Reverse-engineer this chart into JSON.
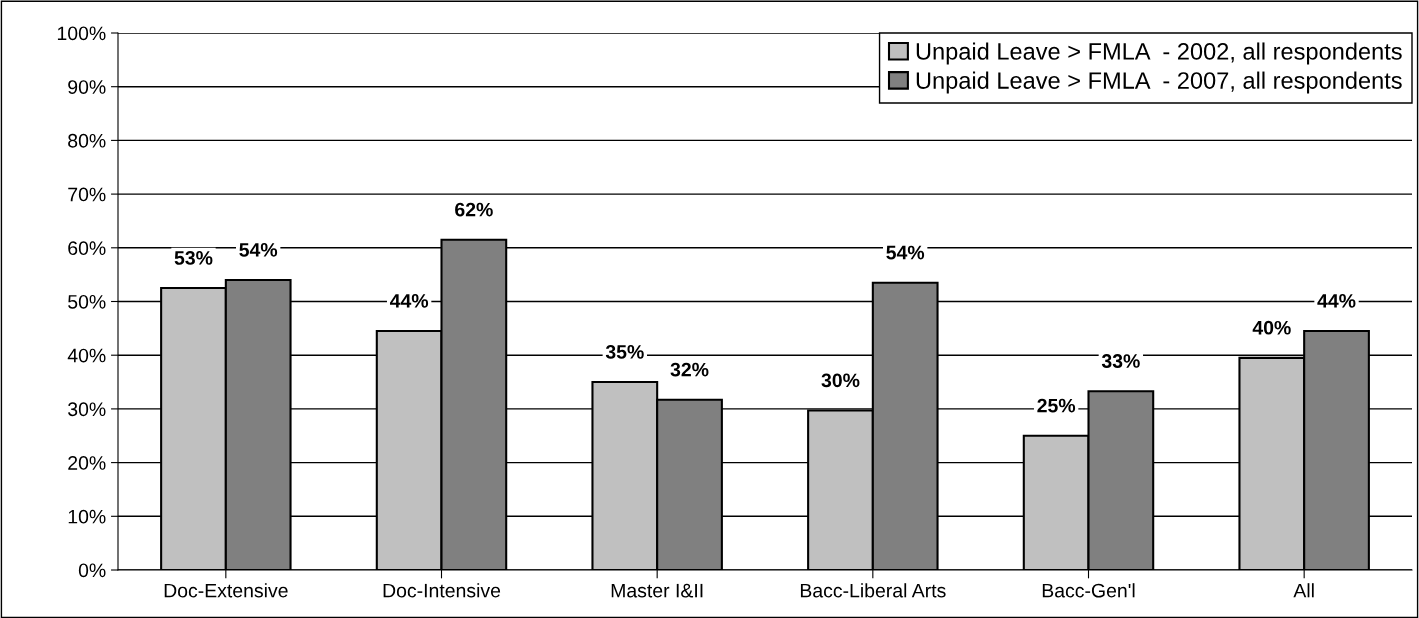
{
  "chart_data": {
    "type": "bar",
    "categories": [
      "Doc-Extensive",
      "Doc-Intensive",
      "Master I&II",
      "Bacc-Liberal Arts",
      "Bacc-Gen'l",
      "All"
    ],
    "series": [
      {
        "name": "Unpaid Leave > FMLA  - 2002, all respondents",
        "color": "#c0c0c0",
        "values": [
          52.5,
          44.5,
          35,
          29.7,
          25,
          39.5
        ],
        "value_labels": [
          "53%",
          "44%",
          "35%",
          "30%",
          "25%",
          "40%"
        ]
      },
      {
        "name": "Unpaid Leave > FMLA  - 2007, all respondents",
        "color": "#808080",
        "values": [
          54,
          61.5,
          31.7,
          53.5,
          33.3,
          44.5
        ],
        "value_labels": [
          "54%",
          "62%",
          "32%",
          "54%",
          "33%",
          "44%"
        ]
      }
    ],
    "ylim": [
      0,
      100
    ],
    "yticks": [
      {
        "value": 0,
        "label": "0%"
      },
      {
        "value": 10,
        "label": "10%"
      },
      {
        "value": 20,
        "label": "20%"
      },
      {
        "value": 30,
        "label": "30%"
      },
      {
        "value": 40,
        "label": "40%"
      },
      {
        "value": 50,
        "label": "50%"
      },
      {
        "value": 60,
        "label": "60%"
      },
      {
        "value": 70,
        "label": "70%"
      },
      {
        "value": 80,
        "label": "80%"
      },
      {
        "value": 90,
        "label": "90%"
      },
      {
        "value": 100,
        "label": "100%"
      }
    ],
    "grid": "y",
    "legend": "top right"
  }
}
